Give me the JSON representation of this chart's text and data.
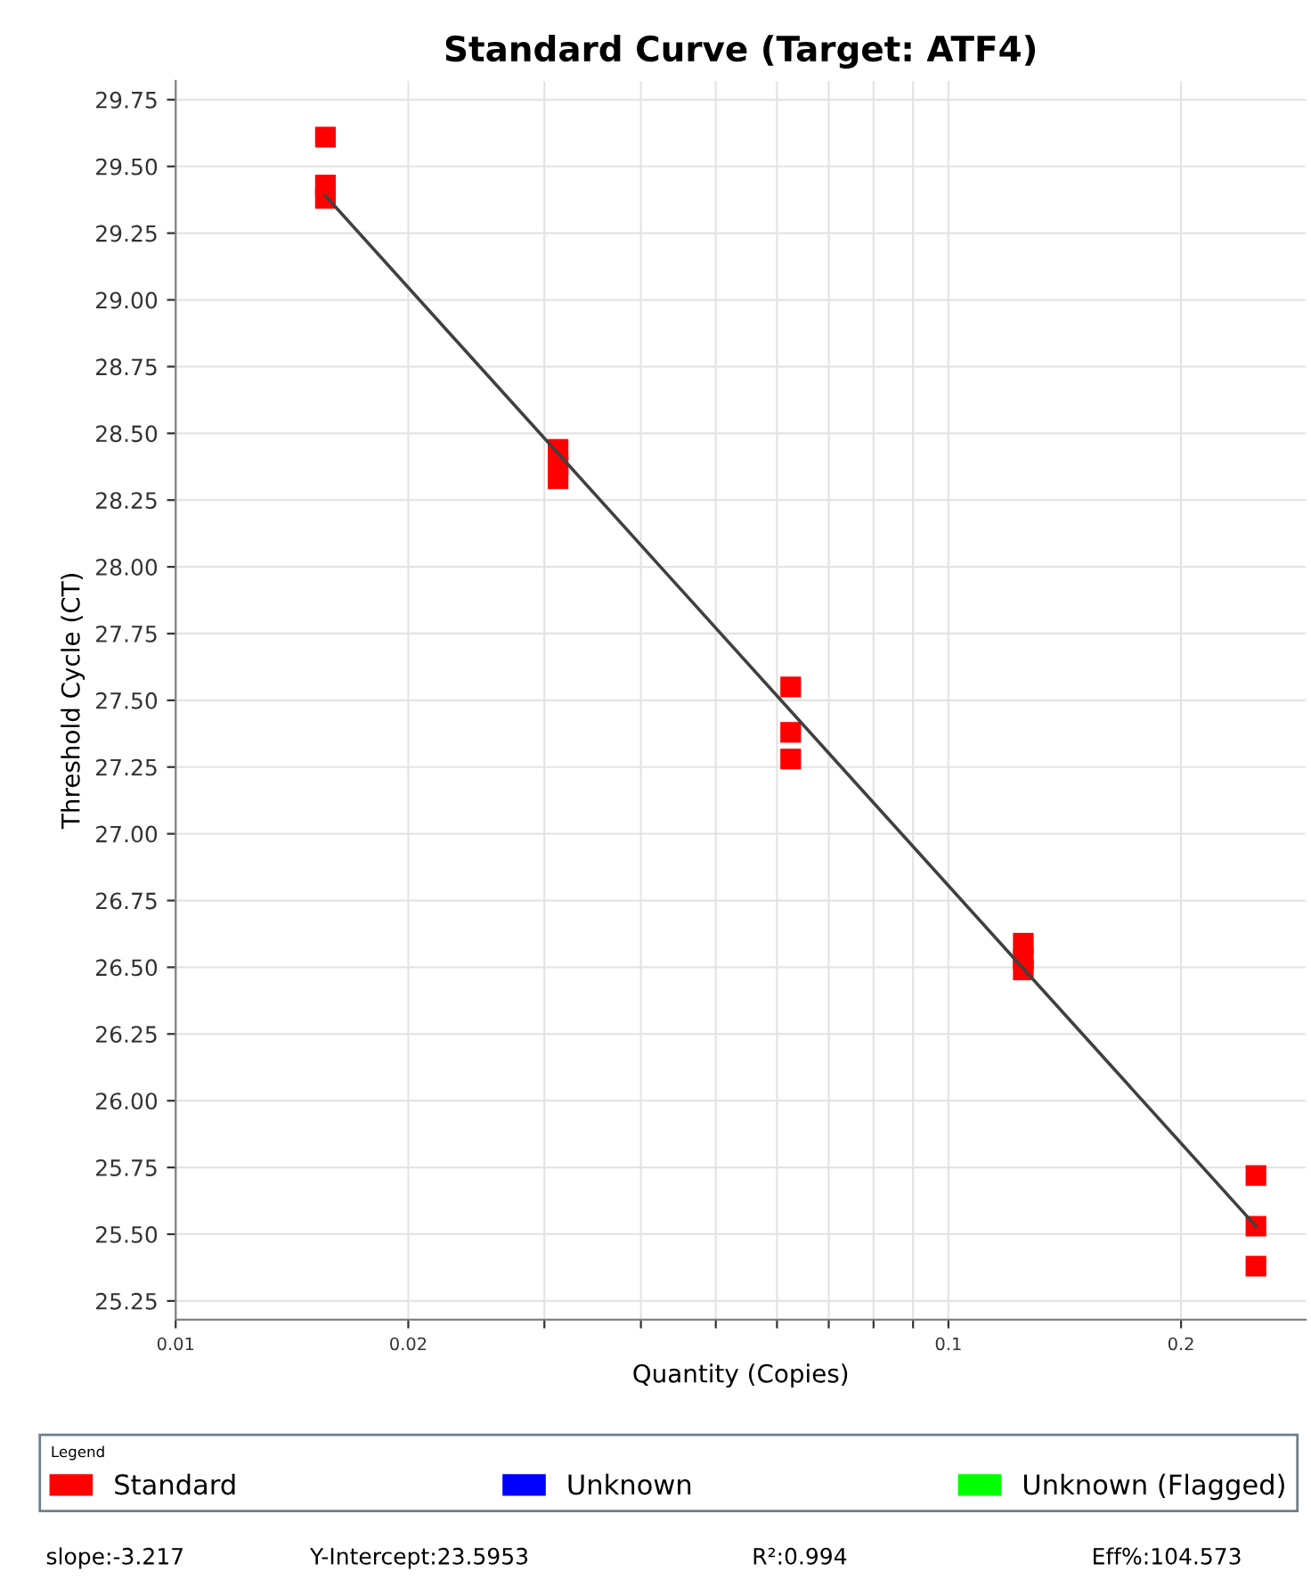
{
  "chart_data": {
    "type": "scatter",
    "title": "Standard Curve (Target: ATF4)",
    "xlabel": "Quantity (Copies)",
    "ylabel": "Threshold Cycle (CT)",
    "legend_title": "Legend",
    "log": "x",
    "grid": true,
    "legend": "bottom",
    "marker": "square",
    "xlim": [
      0.01,
      0.29
    ],
    "xticks": [
      0.01,
      0.02,
      {
        "value": 0.03,
        "label": null
      },
      {
        "value": 0.04,
        "label": null
      },
      {
        "value": 0.05,
        "label": null
      },
      {
        "value": 0.06,
        "label": null
      },
      {
        "value": 0.07,
        "label": null
      },
      {
        "value": 0.08,
        "label": null
      },
      {
        "value": 0.09,
        "label": null
      },
      0.1,
      0.2
    ],
    "ylim": [
      25.18,
      29.82
    ],
    "yticks": [
      {
        "value": 25.25,
        "label": "25.25"
      },
      {
        "value": 25.5,
        "label": "25.50"
      },
      {
        "value": 25.75,
        "label": "25.75"
      },
      {
        "value": 26,
        "label": "26.00"
      },
      {
        "value": 26.25,
        "label": "26.25"
      },
      {
        "value": 26.5,
        "label": "26.50"
      },
      {
        "value": 26.75,
        "label": "26.75"
      },
      {
        "value": 27,
        "label": "27.00"
      },
      {
        "value": 27.25,
        "label": "27.25"
      },
      {
        "value": 27.5,
        "label": "27.50"
      },
      {
        "value": 27.75,
        "label": "27.75"
      },
      {
        "value": 28,
        "label": "28.00"
      },
      {
        "value": 28.25,
        "label": "28.25"
      },
      {
        "value": 28.5,
        "label": "28.50"
      },
      {
        "value": 28.75,
        "label": "28.75"
      },
      {
        "value": 29,
        "label": "29.00"
      },
      {
        "value": 29.25,
        "label": "29.25"
      },
      {
        "value": 29.5,
        "label": "29.50"
      },
      {
        "value": 29.75,
        "label": "29.75"
      }
    ],
    "series": [
      {
        "type": "line",
        "color": "#404040",
        "marker": "none",
        "x": [
          0.015625,
          0.25
        ],
        "values": [
          29.39,
          25.53
        ]
      },
      {
        "name": "Standard",
        "color": "#ff0000",
        "x": [
          0.015625,
          0.015625,
          0.015625,
          0.03125,
          0.03125,
          0.03125,
          0.0625,
          0.0625,
          0.0625,
          0.125,
          0.125,
          0.125,
          0.25,
          0.25,
          0.25
        ],
        "values": [
          29.61,
          29.43,
          29.38,
          28.44,
          28.38,
          28.33,
          27.55,
          27.38,
          27.28,
          26.59,
          26.53,
          26.49,
          25.72,
          25.53,
          25.38
        ]
      },
      {
        "name": "Unknown",
        "color": "#0000ff"
      },
      {
        "name": "Unknown (Flagged)",
        "color": "#00ff00"
      }
    ],
    "annotations": [
      "slope:-3.217",
      "Y-Intercept:23.5953",
      "R²:0.994",
      "Eff%:104.573"
    ]
  }
}
